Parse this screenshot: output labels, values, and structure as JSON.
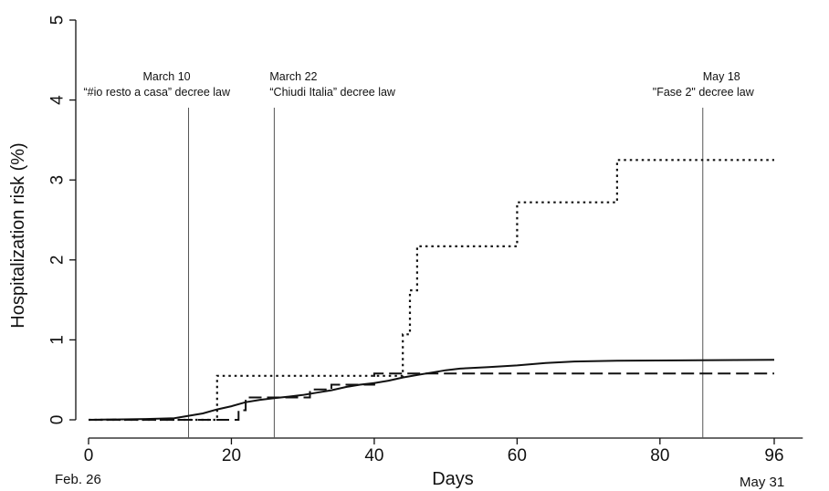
{
  "chart_data": {
    "type": "line",
    "xlabel": "Days",
    "ylabel": "Hospitalization risk (%)",
    "xlim": [
      -2,
      100
    ],
    "ylim": [
      0,
      5
    ],
    "x_ticks": [
      0,
      20,
      40,
      60,
      80,
      96
    ],
    "y_ticks": [
      0,
      1,
      2,
      3,
      4,
      5
    ],
    "date_labels": {
      "start": "Feb. 26",
      "end": "May 31"
    },
    "grid": false,
    "legend": "none",
    "series": [
      {
        "line_style": "solid",
        "step": false,
        "points": [
          [
            0,
            0
          ],
          [
            8,
            0.01
          ],
          [
            12,
            0.02
          ],
          [
            14,
            0.05
          ],
          [
            16,
            0.08
          ],
          [
            18,
            0.13
          ],
          [
            20,
            0.17
          ],
          [
            22,
            0.22
          ],
          [
            24,
            0.25
          ],
          [
            26,
            0.27
          ],
          [
            28,
            0.29
          ],
          [
            30,
            0.31
          ],
          [
            32,
            0.34
          ],
          [
            34,
            0.37
          ],
          [
            36,
            0.41
          ],
          [
            38,
            0.44
          ],
          [
            40,
            0.46
          ],
          [
            42,
            0.49
          ],
          [
            44,
            0.53
          ],
          [
            46,
            0.56
          ],
          [
            48,
            0.59
          ],
          [
            50,
            0.62
          ],
          [
            52,
            0.64
          ],
          [
            56,
            0.66
          ],
          [
            60,
            0.68
          ],
          [
            64,
            0.71
          ],
          [
            68,
            0.73
          ],
          [
            74,
            0.74
          ],
          [
            96,
            0.75
          ]
        ]
      },
      {
        "line_style": "dashed",
        "step": true,
        "points": [
          [
            0,
            0
          ],
          [
            21,
            0
          ],
          [
            21,
            0.12
          ],
          [
            22,
            0.12
          ],
          [
            22,
            0.28
          ],
          [
            31,
            0.28
          ],
          [
            31,
            0.38
          ],
          [
            34,
            0.38
          ],
          [
            34,
            0.44
          ],
          [
            40,
            0.44
          ],
          [
            40,
            0.58
          ],
          [
            96,
            0.58
          ]
        ]
      },
      {
        "line_style": "dotted",
        "step": true,
        "points": [
          [
            0,
            0
          ],
          [
            18,
            0
          ],
          [
            18,
            0.55
          ],
          [
            44,
            0.55
          ],
          [
            44,
            1.07
          ],
          [
            45,
            1.07
          ],
          [
            45,
            1.62
          ],
          [
            46,
            1.62
          ],
          [
            46,
            2.17
          ],
          [
            60,
            2.17
          ],
          [
            60,
            2.72
          ],
          [
            74,
            2.72
          ],
          [
            74,
            3.25
          ],
          [
            96,
            3.25
          ]
        ]
      }
    ],
    "vertical_lines": [
      {
        "x": 14,
        "date": "March 10",
        "label": "“#io resto a casa” decree law"
      },
      {
        "x": 26,
        "date": "March 22",
        "label": "“Chiudi Italia”  decree law"
      },
      {
        "x": 86,
        "date": "May  18",
        "label": "\"Fase 2\" decree law"
      }
    ]
  }
}
